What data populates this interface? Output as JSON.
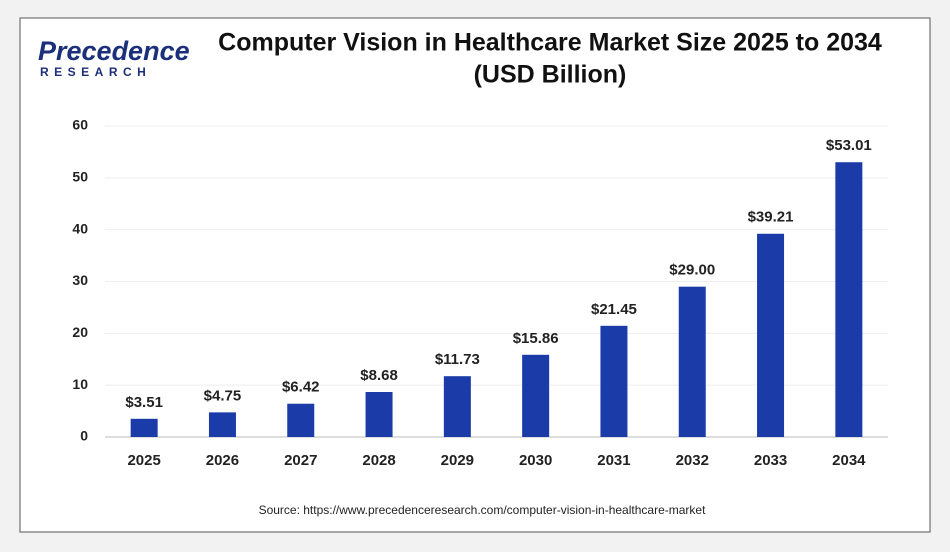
{
  "logo": {
    "name": "Precedence",
    "tagline": "RESEARCH"
  },
  "chart_data": {
    "type": "bar",
    "title": "Computer Vision in Healthcare Market Size 2025 to 2034",
    "subtitle": "(USD Billion)",
    "categories": [
      "2025",
      "2026",
      "2027",
      "2028",
      "2029",
      "2030",
      "2031",
      "2032",
      "2033",
      "2034"
    ],
    "values": [
      3.51,
      4.75,
      6.42,
      8.68,
      11.73,
      15.86,
      21.45,
      29.0,
      39.21,
      53.01
    ],
    "value_labels": [
      "$3.51",
      "$4.75",
      "$6.42",
      "$8.68",
      "$11.73",
      "$15.86",
      "$21.45",
      "$29.00",
      "$39.21",
      "$53.01"
    ],
    "color": "#1a3ba8",
    "ylim": [
      0,
      60
    ],
    "yticks": [
      0,
      10,
      20,
      30,
      40,
      50,
      60
    ],
    "grid": true,
    "source": "Source: https://www.precedenceresearch.com/computer-vision-in-healthcare-market"
  }
}
